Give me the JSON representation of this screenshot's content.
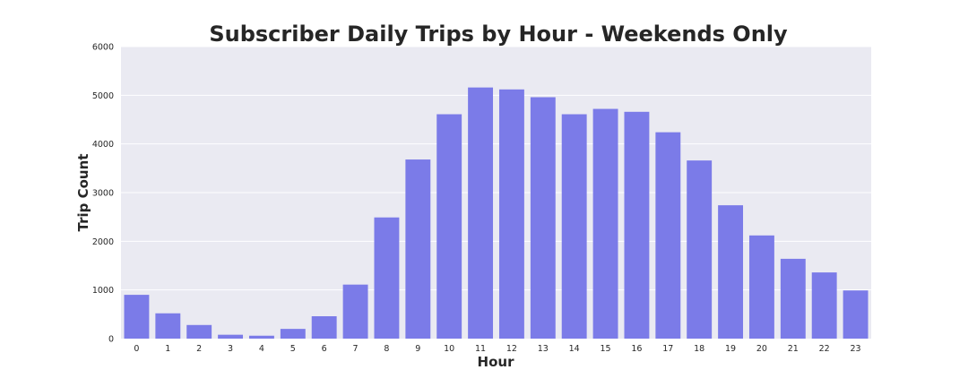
{
  "chart_data": {
    "type": "bar",
    "title": "Subscriber Daily Trips by Hour - Weekends Only",
    "xlabel": "Hour",
    "ylabel": "Trip Count",
    "categories": [
      "0",
      "1",
      "2",
      "3",
      "4",
      "5",
      "6",
      "7",
      "8",
      "9",
      "10",
      "11",
      "12",
      "13",
      "14",
      "15",
      "16",
      "17",
      "18",
      "19",
      "20",
      "21",
      "22",
      "23"
    ],
    "values": [
      900,
      520,
      280,
      80,
      60,
      200,
      460,
      1110,
      2490,
      3680,
      4610,
      5160,
      5120,
      4960,
      4610,
      4720,
      4660,
      4240,
      3660,
      2740,
      2120,
      1640,
      1360,
      990
    ],
    "ylim": [
      0,
      6000
    ],
    "yticks": [
      0,
      1000,
      2000,
      3000,
      4000,
      5000,
      6000
    ],
    "grid": true,
    "legend": "none",
    "colors": {
      "bar": "#7b7be8",
      "plot_background": "#eaeaf2",
      "grid": "#ffffff",
      "text": "#262626"
    }
  }
}
